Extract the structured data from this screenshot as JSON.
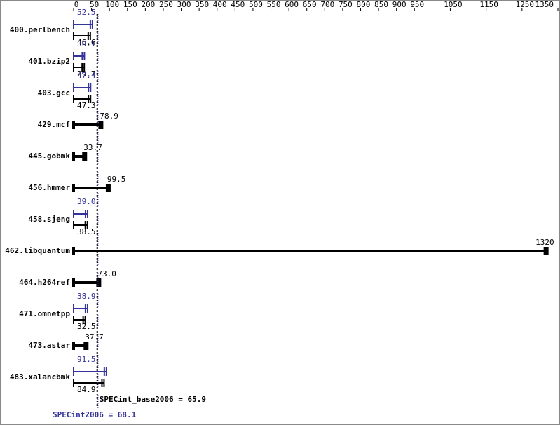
{
  "chart_data": {
    "type": "bar",
    "orientation": "horizontal",
    "categories": [
      "400.perlbench",
      "401.bzip2",
      "403.gcc",
      "429.mcf",
      "445.gobmk",
      "456.hmmer",
      "458.sjeng",
      "462.libquantum",
      "464.h264ref",
      "471.omnetpp",
      "473.astar",
      "483.xalancbmk"
    ],
    "series": [
      {
        "name": "base",
        "color": "#000000",
        "values": [
          46.6,
          29.7,
          47.3,
          78.9,
          33.7,
          99.5,
          38.5,
          1320,
          73.0,
          32.5,
          37.7,
          84.9
        ],
        "value_labels": [
          "46.6",
          "29.7",
          "47.3",
          "78.9",
          "33.7",
          "99.5",
          "38.5",
          "1320",
          "73.0",
          "32.5",
          "37.7",
          "84.9"
        ]
      },
      {
        "name": "peak",
        "color": "#333399",
        "values": [
          52.5,
          30.1,
          47.4,
          null,
          null,
          null,
          39.0,
          null,
          null,
          38.9,
          null,
          91.5
        ],
        "value_labels": [
          "52.5",
          "30.1",
          "47.4",
          null,
          null,
          null,
          "39.0",
          null,
          null,
          "38.9",
          null,
          "91.5"
        ]
      }
    ],
    "xlim": [
      0,
      1350
    ],
    "xticks": [
      0,
      50,
      100,
      150,
      200,
      250,
      300,
      350,
      400,
      450,
      500,
      550,
      600,
      650,
      700,
      750,
      800,
      850,
      900,
      950,
      1050,
      1150,
      1250,
      1350
    ],
    "reference_lines": [
      {
        "value": 65.9,
        "label": "SPECint_base2006 = 65.9",
        "color": "#000000"
      },
      {
        "value": 68.1,
        "label": "SPECint2006 = 68.1",
        "color": "#333399"
      }
    ]
  }
}
